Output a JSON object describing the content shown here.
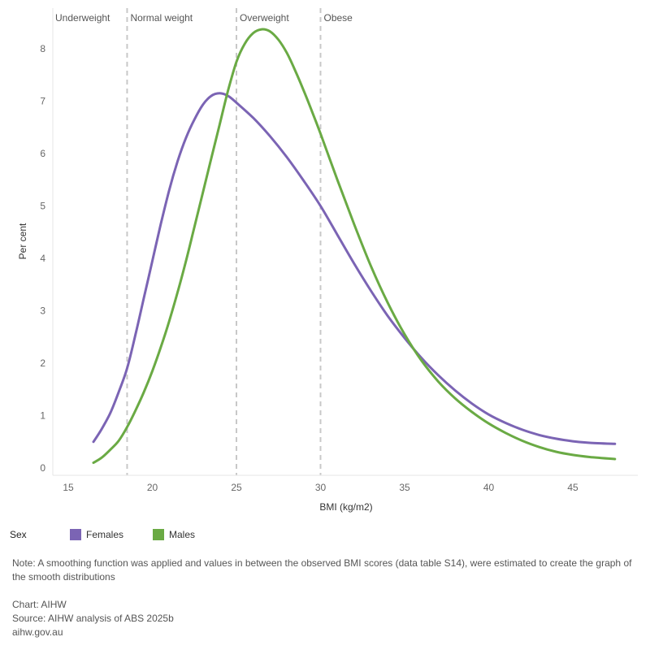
{
  "chart_data": {
    "type": "line",
    "xlabel": "BMI (kg/m2)",
    "ylabel": "Per cent",
    "xlim": [
      13.5,
      48.5
    ],
    "ylim": [
      0,
      8.5
    ],
    "xticks": [
      15,
      20,
      25,
      30,
      35,
      40,
      45
    ],
    "yticks": [
      0,
      1,
      2,
      3,
      4,
      5,
      6,
      7,
      8
    ],
    "grid": false,
    "legend_position": "bottom-left",
    "legend_title": "Sex",
    "category_bands": [
      {
        "label": "Underweight",
        "from": 13.5,
        "to": 18.5
      },
      {
        "label": "Normal weight",
        "from": 18.5,
        "to": 25
      },
      {
        "label": "Overweight",
        "from": 25,
        "to": 30
      },
      {
        "label": "Obese",
        "from": 30,
        "to": 48.5
      }
    ],
    "dividers": [
      18.5,
      25,
      30
    ],
    "series": [
      {
        "name": "Females",
        "color": "#7B64B4",
        "points": [
          [
            16.5,
            0.5
          ],
          [
            17,
            0.75
          ],
          [
            17.5,
            1.05
          ],
          [
            18,
            1.45
          ],
          [
            18.5,
            1.9
          ],
          [
            19,
            2.55
          ],
          [
            19.5,
            3.25
          ],
          [
            20,
            3.95
          ],
          [
            20.5,
            4.65
          ],
          [
            21,
            5.3
          ],
          [
            21.5,
            5.85
          ],
          [
            22,
            6.3
          ],
          [
            22.5,
            6.65
          ],
          [
            23,
            6.93
          ],
          [
            23.5,
            7.1
          ],
          [
            24,
            7.15
          ],
          [
            24.5,
            7.1
          ],
          [
            25,
            6.97
          ],
          [
            26,
            6.68
          ],
          [
            27,
            6.33
          ],
          [
            28,
            5.93
          ],
          [
            29,
            5.48
          ],
          [
            30,
            5.0
          ],
          [
            31,
            4.45
          ],
          [
            32,
            3.9
          ],
          [
            33,
            3.38
          ],
          [
            34,
            2.9
          ],
          [
            35,
            2.48
          ],
          [
            36,
            2.1
          ],
          [
            37,
            1.77
          ],
          [
            38,
            1.48
          ],
          [
            39,
            1.23
          ],
          [
            40,
            1.02
          ],
          [
            41,
            0.86
          ],
          [
            42,
            0.73
          ],
          [
            43,
            0.63
          ],
          [
            44,
            0.56
          ],
          [
            45,
            0.51
          ],
          [
            46,
            0.48
          ],
          [
            47.5,
            0.46
          ]
        ]
      },
      {
        "name": "Males",
        "color": "#6AAA44",
        "points": [
          [
            16.5,
            0.1
          ],
          [
            17,
            0.2
          ],
          [
            17.5,
            0.35
          ],
          [
            18,
            0.52
          ],
          [
            18.5,
            0.78
          ],
          [
            19,
            1.1
          ],
          [
            19.5,
            1.45
          ],
          [
            20,
            1.85
          ],
          [
            20.5,
            2.3
          ],
          [
            21,
            2.8
          ],
          [
            21.5,
            3.35
          ],
          [
            22,
            3.95
          ],
          [
            22.5,
            4.6
          ],
          [
            23,
            5.25
          ],
          [
            23.5,
            5.9
          ],
          [
            24,
            6.55
          ],
          [
            24.5,
            7.2
          ],
          [
            25,
            7.75
          ],
          [
            25.5,
            8.1
          ],
          [
            26,
            8.3
          ],
          [
            26.5,
            8.37
          ],
          [
            27,
            8.33
          ],
          [
            27.5,
            8.17
          ],
          [
            28,
            7.92
          ],
          [
            28.5,
            7.58
          ],
          [
            29,
            7.2
          ],
          [
            29.5,
            6.8
          ],
          [
            30,
            6.38
          ],
          [
            31,
            5.5
          ],
          [
            32,
            4.65
          ],
          [
            33,
            3.85
          ],
          [
            34,
            3.15
          ],
          [
            35,
            2.55
          ],
          [
            36,
            2.05
          ],
          [
            37,
            1.65
          ],
          [
            38,
            1.33
          ],
          [
            39,
            1.07
          ],
          [
            40,
            0.85
          ],
          [
            41,
            0.67
          ],
          [
            42,
            0.52
          ],
          [
            43,
            0.4
          ],
          [
            44,
            0.31
          ],
          [
            45,
            0.25
          ],
          [
            46,
            0.21
          ],
          [
            47.5,
            0.17
          ]
        ]
      }
    ]
  },
  "note": "Note: A smoothing function was applied and values in between the observed BMI scores (data table S14), were estimated to create the graph of the smooth distributions",
  "footer": {
    "chart": "Chart: AIHW",
    "source": "Source: AIHW analysis of ABS 2025b",
    "site": "aihw.gov.au"
  }
}
